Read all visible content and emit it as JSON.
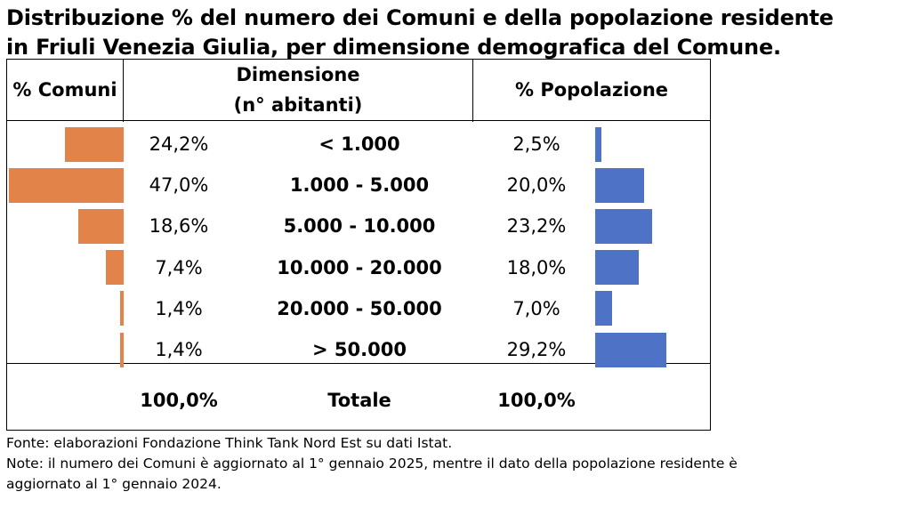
{
  "title": {
    "line1": "Distribuzione % del numero dei Comuni e della popolazione residente",
    "line2": "in Friuli Venezia Giulia, per dimensione demografica del Comune."
  },
  "table": {
    "header_left": "% Comuni",
    "header_mid_1": "Dimensione",
    "header_mid_2": "(n° abitanti)",
    "header_right": "% Popolazione",
    "total_left": "100,0%",
    "total_mid": "Totale",
    "total_right": "100,0%"
  },
  "chart_data": {
    "type": "bar",
    "categories": [
      "< 1.000",
      "1.000 - 5.000",
      "5.000 - 10.000",
      "10.000 - 20.000",
      "20.000 - 50.000",
      "> 50.000"
    ],
    "series": [
      {
        "name": "% Comuni",
        "values": [
          24.2,
          47.0,
          18.6,
          7.4,
          1.4,
          1.4
        ],
        "labels": [
          "24,2%",
          "47,0%",
          "18,6%",
          "7,4%",
          "1,4%",
          "1,4%"
        ],
        "color": "#E2844A"
      },
      {
        "name": "% Popolazione",
        "values": [
          2.5,
          20.0,
          23.2,
          18.0,
          7.0,
          29.2
        ],
        "labels": [
          "2,5%",
          "20,0%",
          "23,2%",
          "18,0%",
          "7,0%",
          "29,2%"
        ],
        "color": "#4E72C6"
      }
    ]
  },
  "notes": {
    "source": "Fonte: elaborazioni Fondazione Think Tank Nord Est su dati Istat.",
    "note_line1": "Note: il numero dei Comuni è aggiornato al 1° gennaio 2025, mentre il dato della popolazione residente è",
    "note_line2": "aggiornato al 1° gennaio 2024."
  }
}
